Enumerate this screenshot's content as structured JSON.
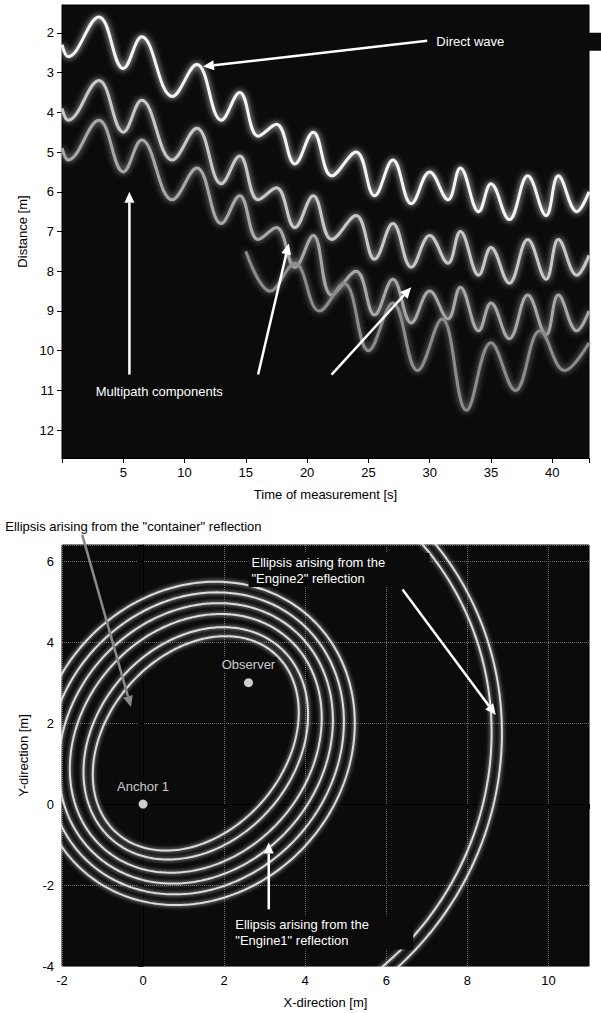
{
  "chart_data": [
    {
      "type": "line",
      "xlabel": "Time of measurement [s]",
      "ylabel": "Distance [m]",
      "xlim": [
        0,
        43
      ],
      "xticks": [
        5,
        10,
        15,
        20,
        25,
        30,
        35,
        40
      ],
      "ylim": [
        12.7,
        1.3
      ],
      "yticks": [
        2,
        3,
        4,
        5,
        6,
        7,
        8,
        9,
        10,
        11,
        12
      ],
      "grid": false,
      "series": [
        {
          "color": "#f4f4f4",
          "x": [
            0,
            0.5,
            3,
            5,
            6.5,
            9,
            11,
            13,
            14.5,
            16,
            17.5,
            19,
            20.5,
            22,
            24,
            25.5,
            27,
            28.5,
            30,
            31.5,
            32.5,
            34,
            35,
            36.5,
            38,
            39.5,
            40.5,
            42,
            43
          ],
          "values": [
            2.3,
            2.6,
            1.6,
            2.9,
            2.1,
            3.6,
            2.8,
            4.2,
            3.5,
            4.6,
            4.3,
            5.3,
            4.5,
            5.6,
            5.0,
            6.1,
            5.2,
            6.3,
            5.5,
            6.2,
            5.4,
            6.5,
            5.8,
            6.7,
            5.6,
            6.6,
            5.6,
            6.5,
            6.0
          ]
        },
        {
          "color": "#c8c8c8",
          "x": [
            0,
            0.5,
            3,
            5,
            6.5,
            9,
            11,
            13,
            14.5,
            16,
            17.5,
            19,
            20.5,
            22,
            24,
            25.5,
            27,
            28.5,
            30,
            31.5,
            32.5,
            34,
            35,
            36.5,
            38,
            39.5,
            40.5,
            42,
            43
          ],
          "values": [
            3.9,
            4.2,
            3.2,
            4.5,
            3.7,
            5.2,
            4.4,
            5.8,
            5.1,
            6.2,
            5.9,
            6.9,
            6.1,
            7.2,
            6.6,
            7.7,
            6.8,
            7.9,
            7.1,
            7.8,
            7.0,
            8.1,
            7.4,
            8.3,
            7.2,
            8.2,
            7.2,
            8.1,
            7.6
          ]
        },
        {
          "color": "#a8a8a8",
          "x": [
            0,
            0.5,
            3,
            5,
            6.5,
            9,
            11,
            13,
            14.5,
            16,
            17.5,
            19,
            20.5,
            22,
            24,
            25.5,
            27,
            28.5,
            30,
            31.5,
            32.5,
            34,
            35,
            36.5,
            38,
            39.5,
            40.5,
            42,
            43
          ],
          "values": [
            4.9,
            5.2,
            4.2,
            5.5,
            4.7,
            6.2,
            5.4,
            6.8,
            6.1,
            7.2,
            6.9,
            7.9,
            7.1,
            8.6,
            8.0,
            9.1,
            8.2,
            9.3,
            8.5,
            9.2,
            8.4,
            9.5,
            8.8,
            9.7,
            8.6,
            9.6,
            8.6,
            9.5,
            9.0
          ]
        },
        {
          "color": "#8c8c8c",
          "x": [
            15,
            17,
            19,
            21,
            23,
            25,
            27,
            29,
            31,
            33,
            35,
            37,
            39,
            41,
            43
          ],
          "values": [
            7.5,
            8.5,
            7.8,
            9.0,
            8.3,
            10.0,
            8.8,
            10.5,
            9.2,
            11.5,
            9.8,
            11.0,
            9.5,
            10.5,
            9.8
          ]
        }
      ],
      "annotations": [
        {
          "text": "Direct wave",
          "x": 30.3,
          "y": 2.0,
          "arrows": [
            {
              "from": [
                29.8,
                2.2
              ],
              "to": [
                11.5,
                2.85
              ]
            }
          ]
        },
        {
          "text": "Multipath components",
          "x": 2.5,
          "y": 10.8,
          "arrows": [
            {
              "from": [
                5.5,
                10.6
              ],
              "to": [
                5.5,
                6.0
              ]
            },
            {
              "from": [
                16,
                10.6
              ],
              "to": [
                18.5,
                7.3
              ]
            },
            {
              "from": [
                22,
                10.6
              ],
              "to": [
                28.5,
                8.4
              ]
            }
          ]
        }
      ]
    },
    {
      "type": "ellipse",
      "xlabel": "X-direction [m]",
      "ylabel": "Y-direction [m]",
      "xlim": [
        -2,
        11
      ],
      "xticks": [
        -2,
        0,
        2,
        4,
        6,
        8,
        10
      ],
      "ylim": [
        -4,
        6.4
      ],
      "yticks": [
        -4,
        -2,
        0,
        2,
        4,
        6
      ],
      "grid": true,
      "points": [
        {
          "label": "Anchor 1",
          "x": 0,
          "y": 0,
          "color": "#ffffff"
        },
        {
          "label": "Observer",
          "x": 2.6,
          "y": 3.0,
          "color": "#ffffff"
        }
      ],
      "path_lengths": [
        5.9,
        6.3,
        6.9,
        7.4,
        7.9,
        8.4,
        14.9,
        15.4
      ],
      "color": "#dcdcdc",
      "annotations": [
        {
          "text": "Ellipsis arising from the \"container\" reflection",
          "x": -3.4,
          "y": 7.05,
          "arrows": [
            {
              "from": [
                -1.5,
                6.65
              ],
              "to": [
                -0.3,
                2.4
              ]
            }
          ]
        },
        {
          "text": "Ellipsis arising from the \"Engine2\" reflection",
          "x": 2.6,
          "y": 6.2,
          "arrows": [
            {
              "from": [
                6.4,
                5.3
              ],
              "to": [
                8.7,
                2.2
              ]
            }
          ]
        },
        {
          "text": "Ellipsis arising from the \"Engine1\" reflection",
          "x": 2.2,
          "y": -2.75,
          "arrows": [
            {
              "from": [
                3.1,
                -2.6
              ],
              "to": [
                3.1,
                -0.95
              ]
            }
          ]
        }
      ]
    }
  ]
}
